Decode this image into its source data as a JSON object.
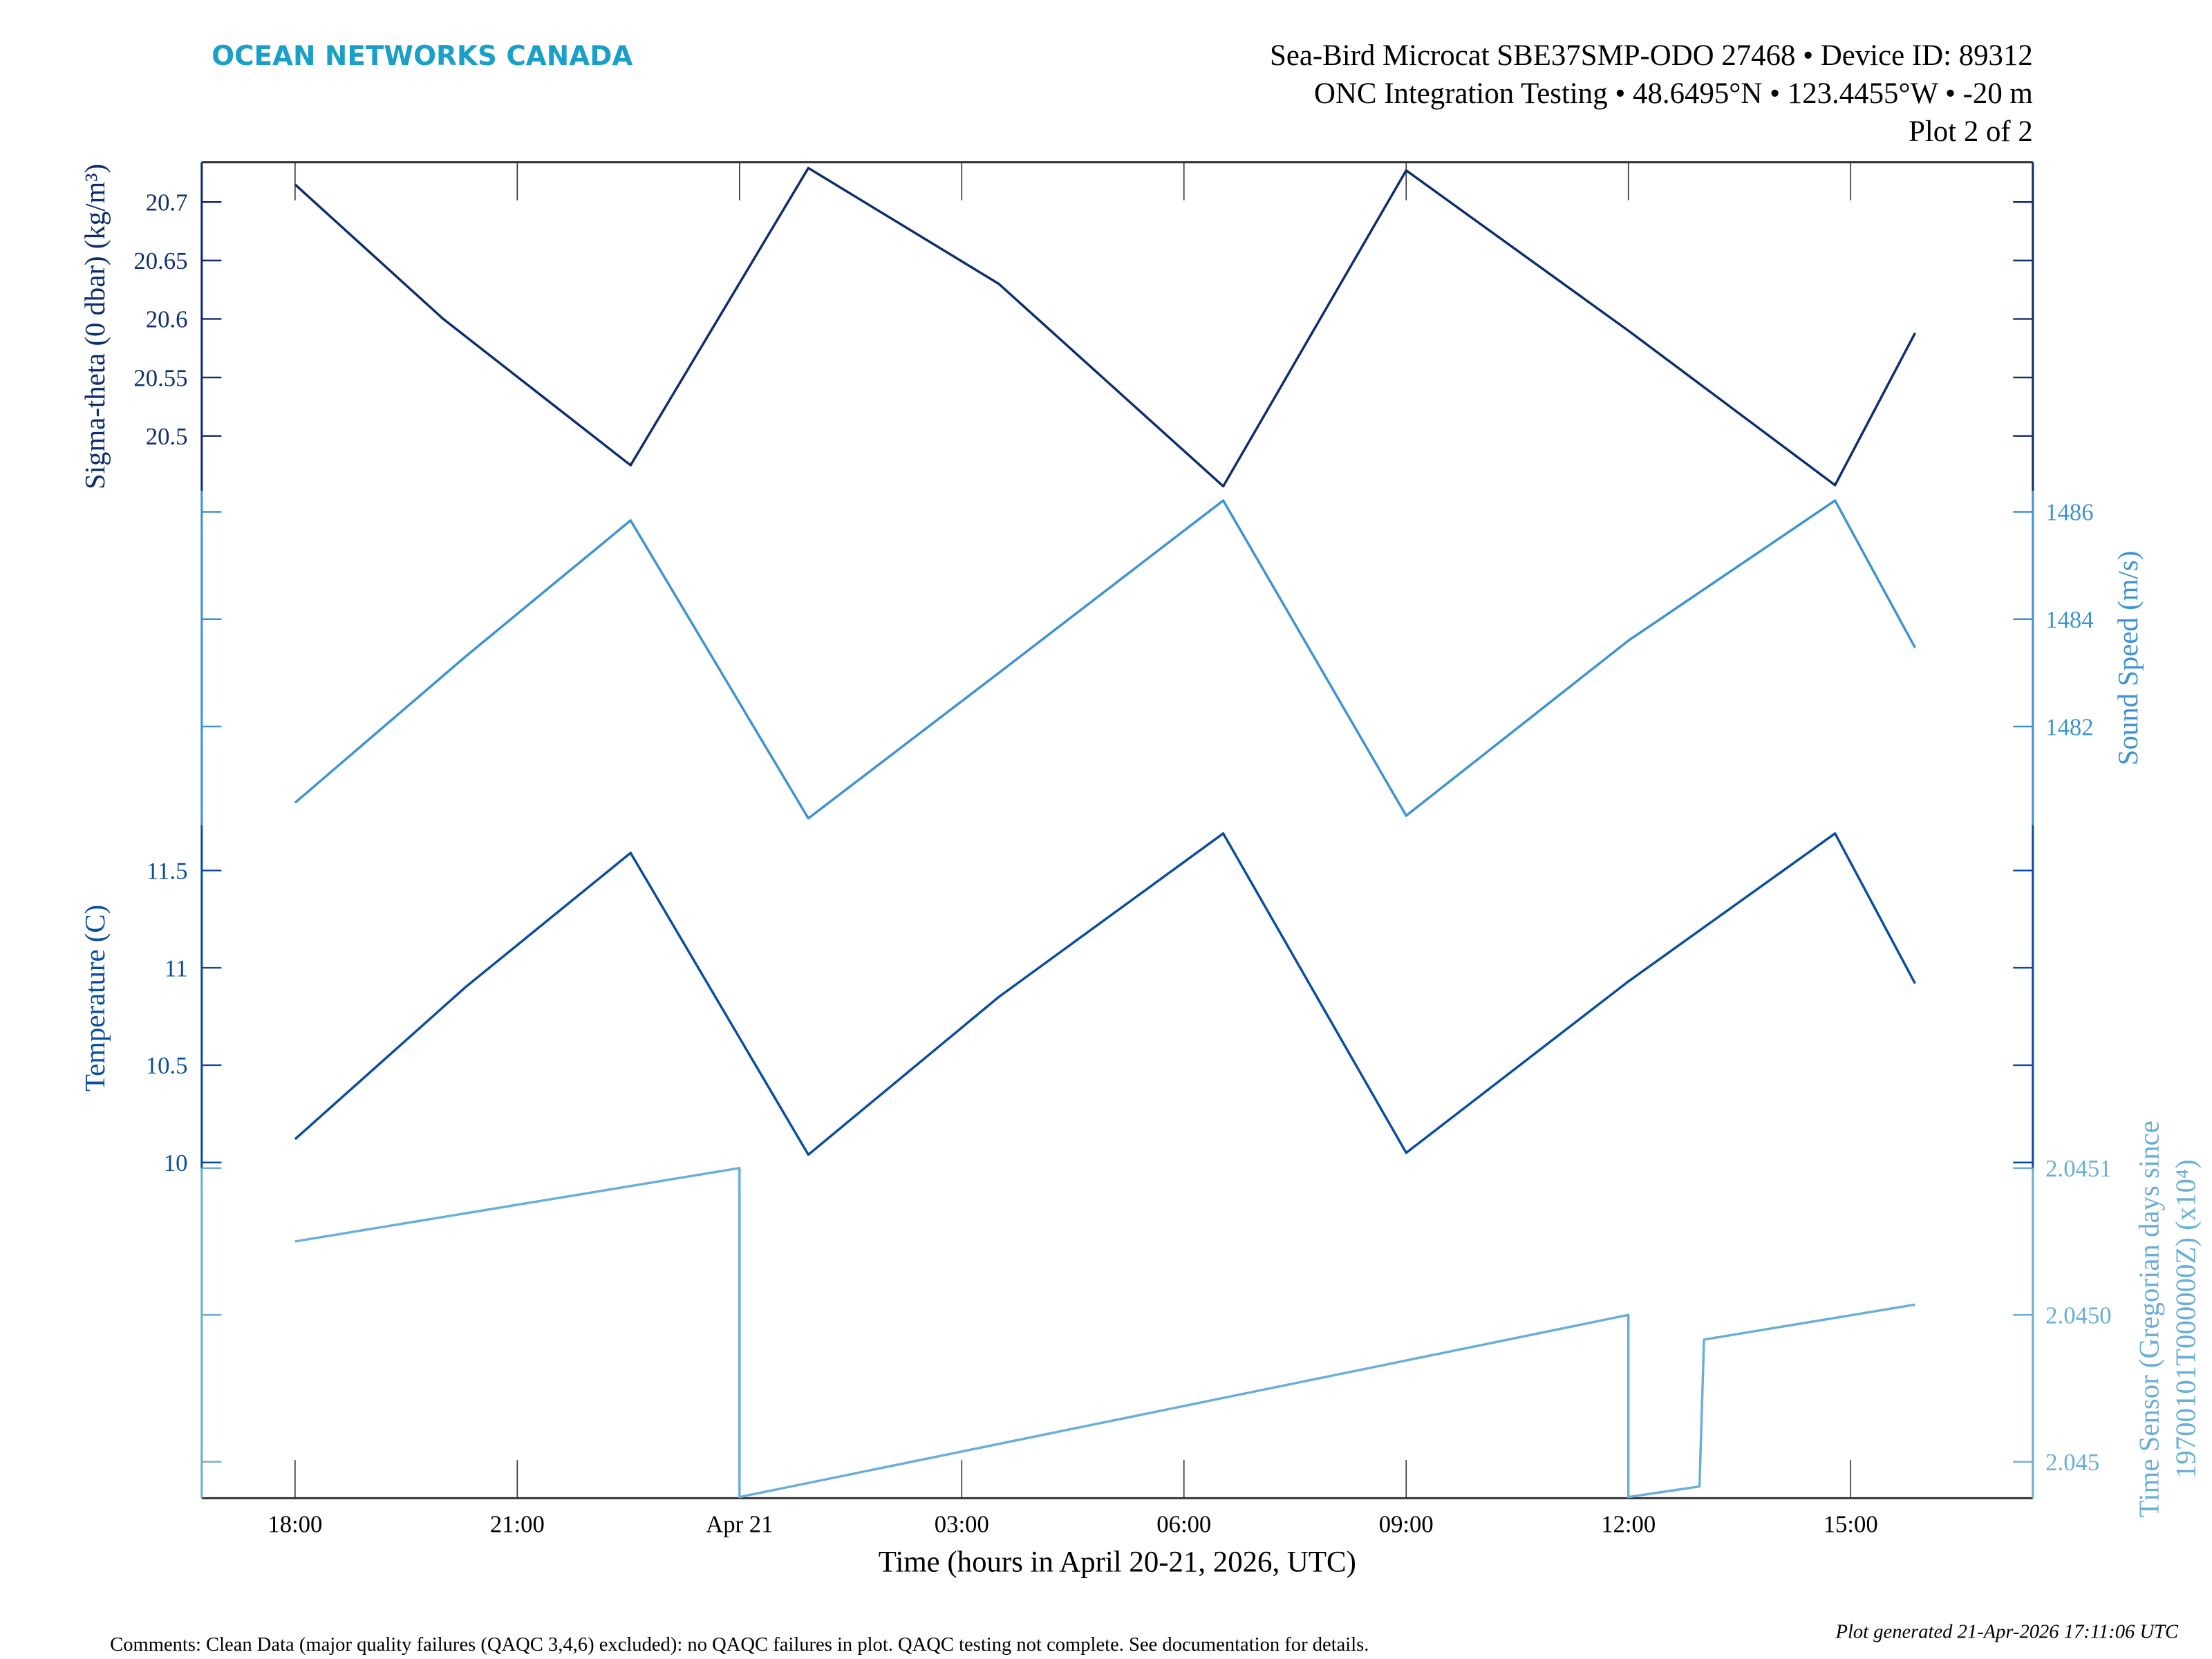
{
  "header": {
    "logo": "OCEAN NETWORKS CANADA",
    "line1": "Sea-Bird Microcat SBE37SMP-ODO 27468 • Device ID: 89312",
    "line2": "ONC Integration Testing • 48.6495°N • 123.4455°W • -20 m",
    "line3": "Plot 2 of 2"
  },
  "footer": {
    "comments": "Comments: Clean Data (major quality failures (QAQC 3,4,6) excluded): no QAQC failures in plot. QAQC testing not complete. See documentation for details.",
    "generated": "Plot generated 21-Apr-2026 17:11:06 UTC"
  },
  "colors": {
    "logo": "#1a9fc9",
    "axis": "#333333"
  },
  "chart_data": {
    "type": "line",
    "xlabel": "Time (hours in April 20-21, 2026, UTC)",
    "x_units": "hours since 2026-04-20 00:00 UTC",
    "xlim": [
      16.74,
      41.46
    ],
    "xticks": [
      18,
      21,
      24,
      27,
      30,
      33,
      36,
      39
    ],
    "xtick_labels": [
      "18:00",
      "21:00",
      "Apr 21",
      "03:00",
      "06:00",
      "09:00",
      "12:00",
      "15:00"
    ],
    "grid": false,
    "series": [
      {
        "name": "Sigma-theta",
        "ylabel": "Sigma-theta (0 dbar) (kg/m³)",
        "axis_side": "left",
        "color": "#0d2d6c",
        "ylim": [
          20.453,
          20.734
        ],
        "yticks": [
          20.7,
          20.65,
          20.6,
          20.55,
          20.5
        ],
        "ytick_labels": [
          "20.7",
          "20.65",
          "20.6",
          "20.55",
          "20.5"
        ],
        "x": [
          18.0,
          20.0,
          22.53,
          24.93,
          27.5,
          30.53,
          33.0,
          36.0,
          38.79,
          39.87
        ],
        "y": [
          20.715,
          20.6,
          20.475,
          20.729,
          20.63,
          20.457,
          20.727,
          20.59,
          20.458,
          20.588
        ]
      },
      {
        "name": "Sound Speed",
        "ylabel": "Sound Speed (m/s)",
        "axis_side": "right",
        "color": "#3d93d2",
        "ylim": [
          1480.16,
          1486.39
        ],
        "yticks": [
          1486,
          1484,
          1482
        ],
        "ytick_labels": [
          "1486",
          "1484",
          "1482"
        ],
        "x": [
          18.0,
          20.3,
          22.53,
          24.93,
          27.5,
          30.53,
          33.0,
          36.0,
          38.79,
          39.87
        ],
        "y": [
          1480.58,
          1483.3,
          1485.84,
          1480.29,
          1483.0,
          1486.21,
          1480.34,
          1483.6,
          1486.21,
          1483.47
        ]
      },
      {
        "name": "Temperature",
        "ylabel": "Temperature (C)",
        "axis_side": "left",
        "color": "#0a4d9e",
        "ylim": [
          9.957,
          11.732
        ],
        "yticks": [
          11.5,
          11,
          10.5,
          10
        ],
        "ytick_labels": [
          "11.5",
          "11",
          "10.5",
          "10"
        ],
        "x": [
          18.0,
          20.3,
          22.53,
          24.93,
          27.5,
          30.53,
          33.0,
          36.0,
          38.79,
          39.87
        ],
        "y": [
          10.12,
          10.9,
          11.59,
          10.04,
          10.85,
          11.69,
          10.05,
          10.93,
          11.69,
          10.92
        ]
      },
      {
        "name": "Time Sensor",
        "ylabel": "Time Sensor (Gregorian days since",
        "ylabel2": "19700101T000000Z) (x10⁴)",
        "axis_side": "right",
        "color": "#6aaed8",
        "ylim": [
          20449.876,
          20451.0
        ],
        "yticks": [
          20451.0,
          20450.5,
          20450.0
        ],
        "ytick_labels": [
          "2.0451",
          "2.0450",
          "2.045"
        ],
        "x": [
          18.0,
          24.0,
          24.0,
          36.0,
          36.0,
          36.96,
          37.02,
          39.87
        ],
        "y": [
          20450.75,
          20451.0,
          20449.88,
          20450.5,
          20449.88,
          20449.916,
          20450.416,
          20450.535
        ]
      }
    ]
  }
}
